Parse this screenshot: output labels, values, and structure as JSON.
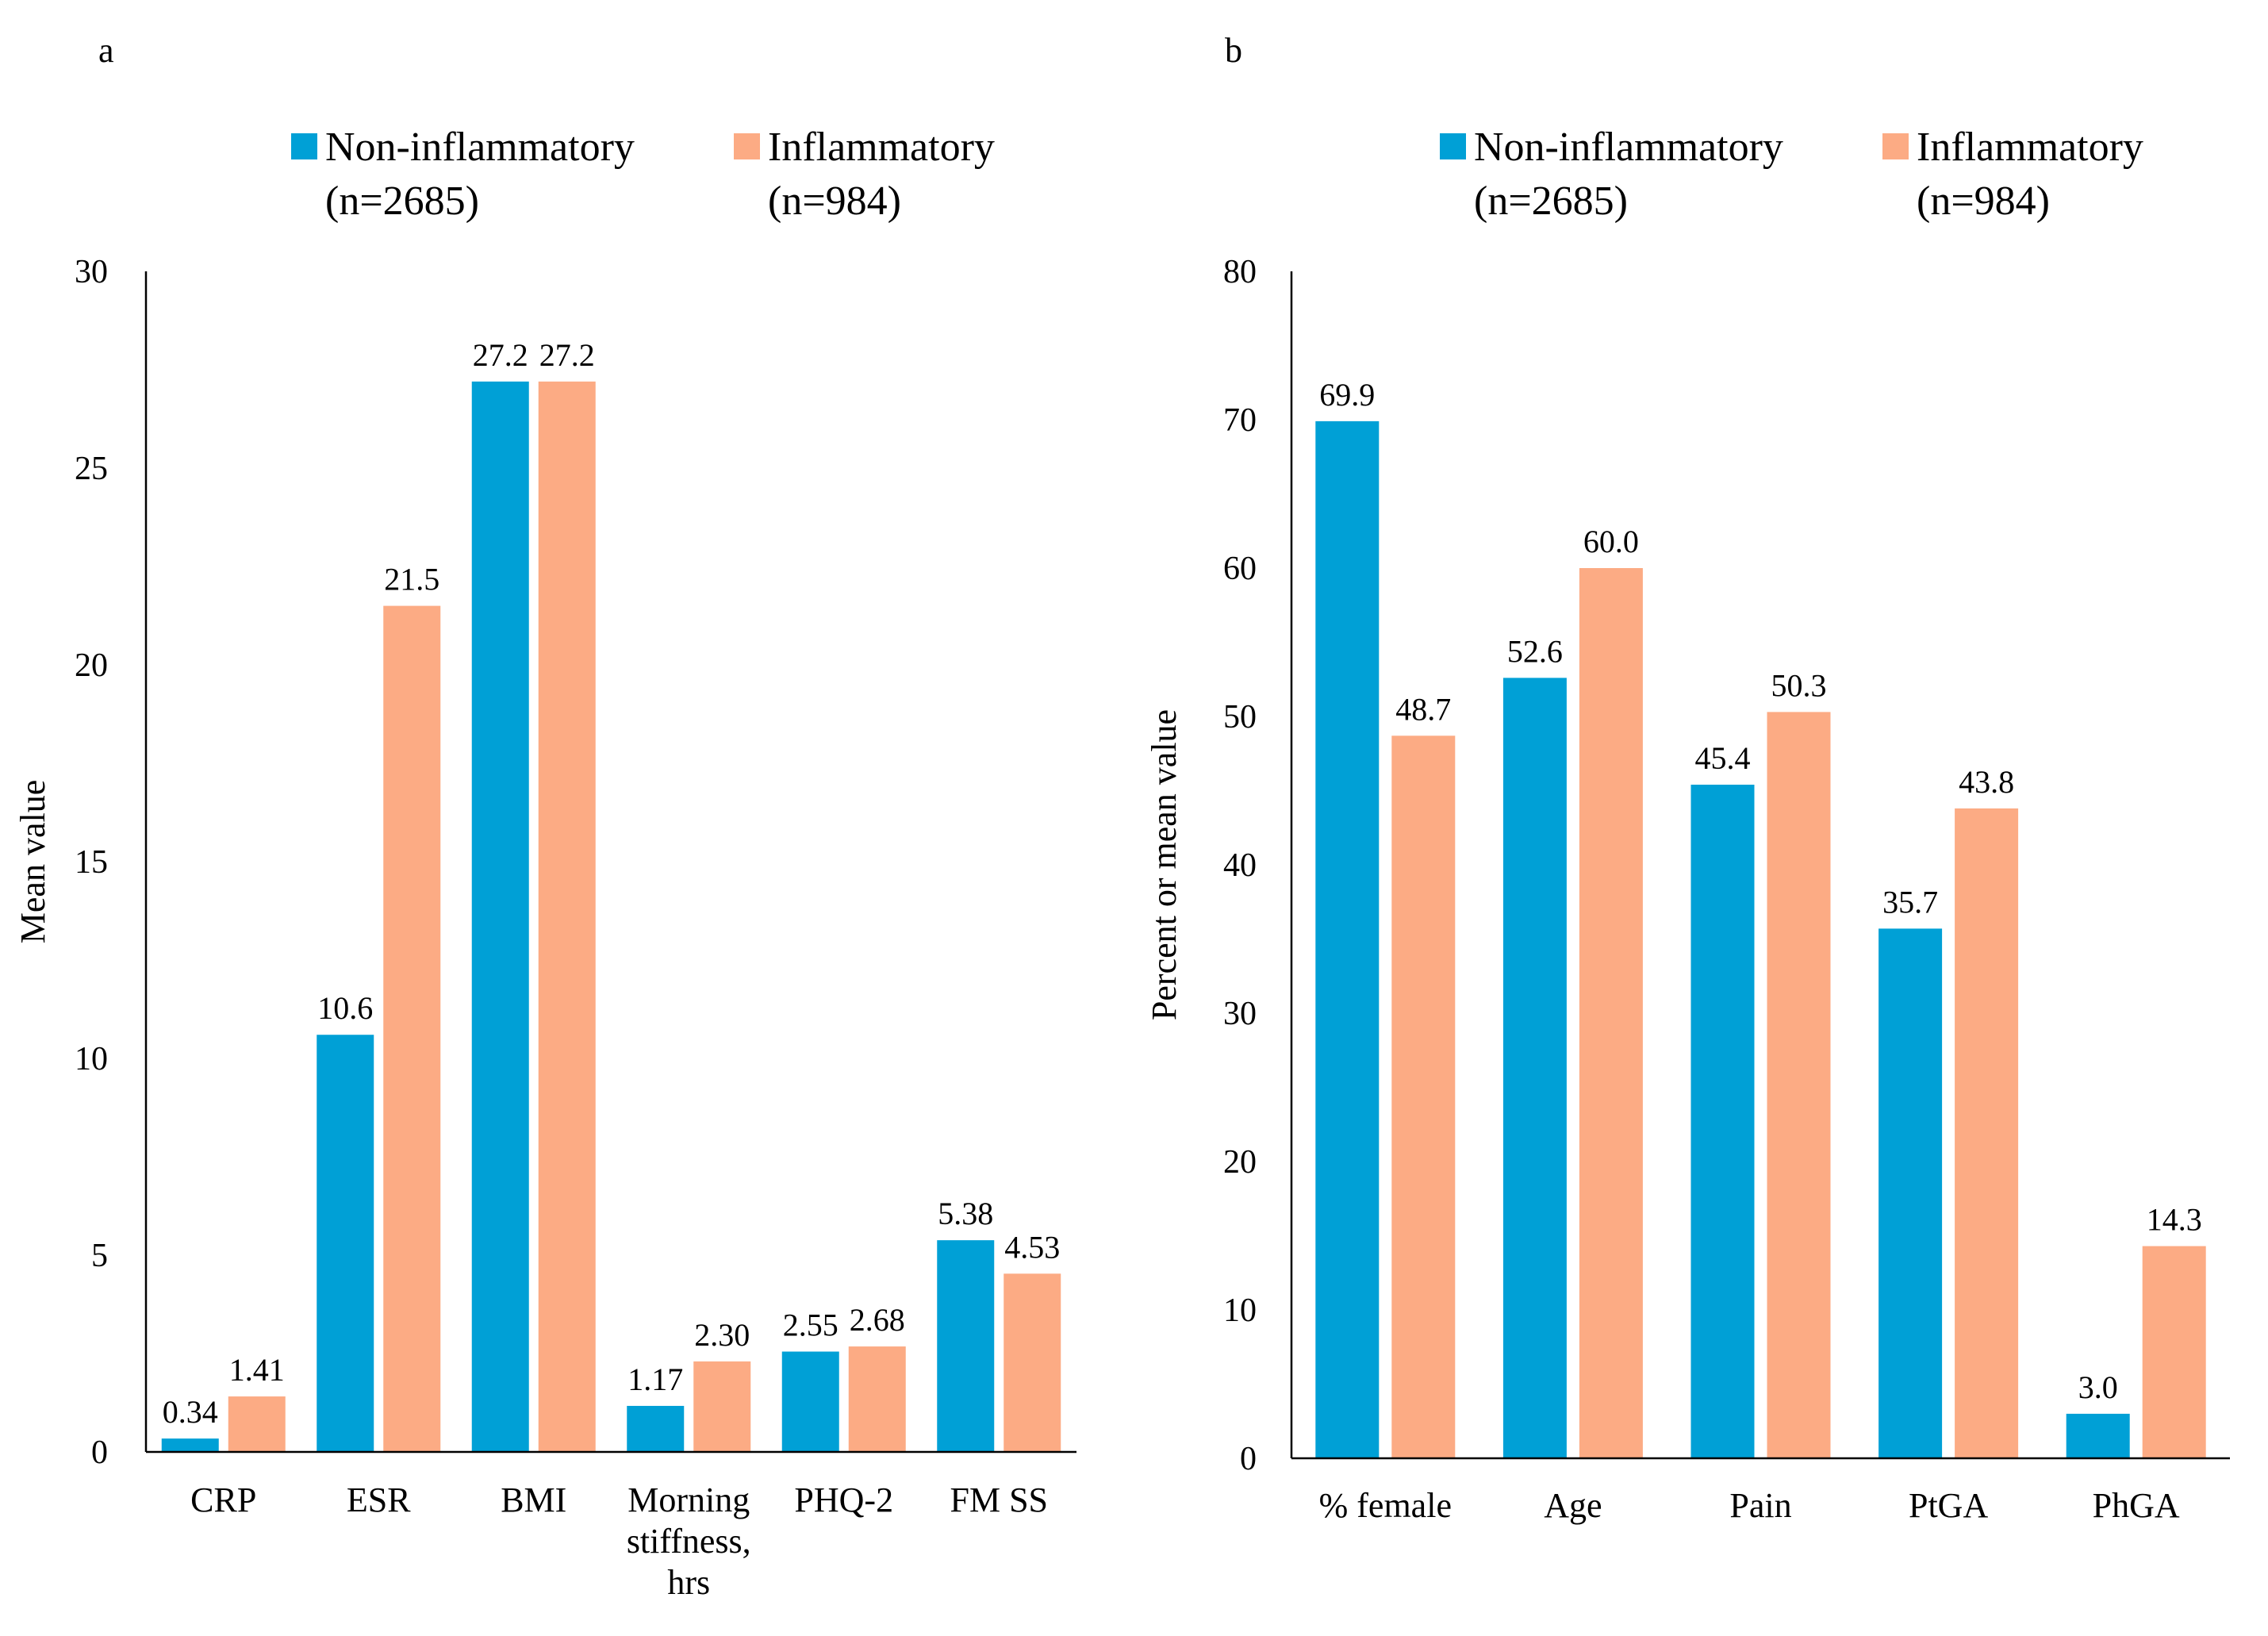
{
  "colors": {
    "non_inflammatory": "#00A0D6",
    "inflammatory": "#FCAB84"
  },
  "chart_data": [
    {
      "type": "bar",
      "panel": "a",
      "categories": [
        "CRP",
        "ESR",
        "BMI",
        "Morning stiffness, hrs",
        "PHQ-2",
        "FM SS"
      ],
      "category_lines": [
        [
          "CRP"
        ],
        [
          "ESR"
        ],
        [
          "BMI"
        ],
        [
          "Morning",
          "stiffness,",
          "hrs"
        ],
        [
          "PHQ-2"
        ],
        [
          "FM SS"
        ]
      ],
      "series": [
        {
          "name": "Non-inflammatory (n=2685)",
          "legend_lines": [
            "Non-inflammatory",
            "(n=2685)"
          ],
          "values": [
            0.34,
            10.6,
            27.2,
            1.17,
            2.55,
            5.38
          ],
          "labels": [
            "0.34",
            "10.6",
            "27.2",
            "1.17",
            "2.55",
            "5.38"
          ]
        },
        {
          "name": "Inflammatory (n=984)",
          "legend_lines": [
            "Inflammatory",
            "(n=984)"
          ],
          "values": [
            1.41,
            21.5,
            27.2,
            2.3,
            2.68,
            4.53
          ],
          "labels": [
            "1.41",
            "21.5",
            "27.2",
            "2.30",
            "2.68",
            "4.53"
          ]
        }
      ],
      "ylabel": "Mean value",
      "ylim": [
        0,
        30
      ],
      "yticks": [
        0,
        5,
        10,
        15,
        20,
        25,
        30
      ],
      "legend_position": "top",
      "grid": false
    },
    {
      "type": "bar",
      "panel": "b",
      "categories": [
        "% female",
        "Age",
        "Pain",
        "PtGA",
        "PhGA"
      ],
      "category_lines": [
        [
          "% female"
        ],
        [
          "Age"
        ],
        [
          "Pain"
        ],
        [
          "PtGA"
        ],
        [
          "PhGA"
        ]
      ],
      "series": [
        {
          "name": "Non-inflammatory (n=2685)",
          "legend_lines": [
            "Non-inflammatory",
            "(n=2685)"
          ],
          "values": [
            69.9,
            52.6,
            45.4,
            35.7,
            3.0
          ],
          "labels": [
            "69.9",
            "52.6",
            "45.4",
            "35.7",
            "3.0"
          ]
        },
        {
          "name": "Inflammatory (n=984)",
          "legend_lines": [
            "Inflammatory",
            "(n=984)"
          ],
          "values": [
            48.7,
            60.0,
            50.3,
            43.8,
            14.3
          ],
          "labels": [
            "48.7",
            "60.0",
            "50.3",
            "43.8",
            "14.3"
          ]
        }
      ],
      "ylabel": "Percent or mean value",
      "ylim": [
        0,
        80
      ],
      "yticks": [
        0,
        10,
        20,
        30,
        40,
        50,
        60,
        70,
        80
      ],
      "legend_position": "top",
      "grid": false
    }
  ]
}
